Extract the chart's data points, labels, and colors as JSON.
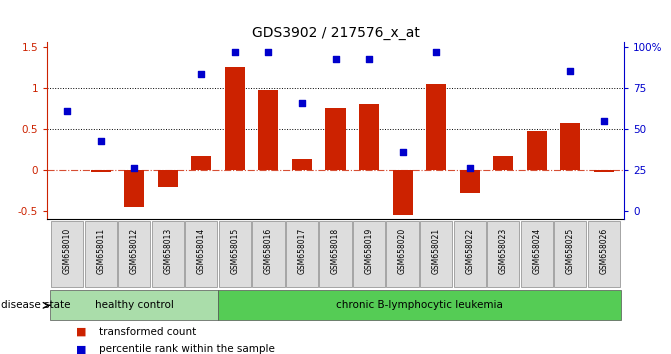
{
  "title": "GDS3902 / 217576_x_at",
  "samples": [
    "GSM658010",
    "GSM658011",
    "GSM658012",
    "GSM658013",
    "GSM658014",
    "GSM658015",
    "GSM658016",
    "GSM658017",
    "GSM658018",
    "GSM658019",
    "GSM658020",
    "GSM658021",
    "GSM658022",
    "GSM658023",
    "GSM658024",
    "GSM658025",
    "GSM658026"
  ],
  "transformed_count": [
    0.0,
    -0.02,
    -0.45,
    -0.2,
    0.17,
    1.25,
    0.97,
    0.13,
    0.75,
    0.8,
    -0.55,
    1.05,
    -0.28,
    0.17,
    0.47,
    0.57,
    -0.02
  ],
  "percentile_rank": [
    0.72,
    0.35,
    0.02,
    null,
    1.17,
    1.43,
    1.43,
    0.82,
    1.35,
    1.35,
    0.22,
    1.43,
    0.02,
    null,
    null,
    1.2,
    0.6
  ],
  "n_healthy": 5,
  "bar_color": "#cc2200",
  "dot_color": "#0000cc",
  "healthy_color": "#aaddaa",
  "leukemia_color": "#55cc55",
  "sample_box_color": "#dddddd",
  "ylim": [
    -0.6,
    1.55
  ],
  "left_yticks": [
    -0.5,
    0.0,
    0.5,
    1.0,
    1.5
  ],
  "left_ytick_labels": [
    "-0.5",
    "0",
    "0.5",
    "1",
    "1.5"
  ],
  "right_yticks": [
    0,
    25,
    50,
    75,
    100
  ],
  "right_ytick_labels": [
    "0",
    "25",
    "50",
    "75",
    "100%"
  ],
  "dotted_lines": [
    0.5,
    1.0
  ],
  "zero_line_color": "#cc2200",
  "title_fontsize": 10,
  "background_color": "#ffffff",
  "disease_state_label": "disease state",
  "healthy_label": "healthy control",
  "leukemia_label": "chronic B-lymphocytic leukemia",
  "legend_bar_label": "transformed count",
  "legend_dot_label": "percentile rank within the sample"
}
